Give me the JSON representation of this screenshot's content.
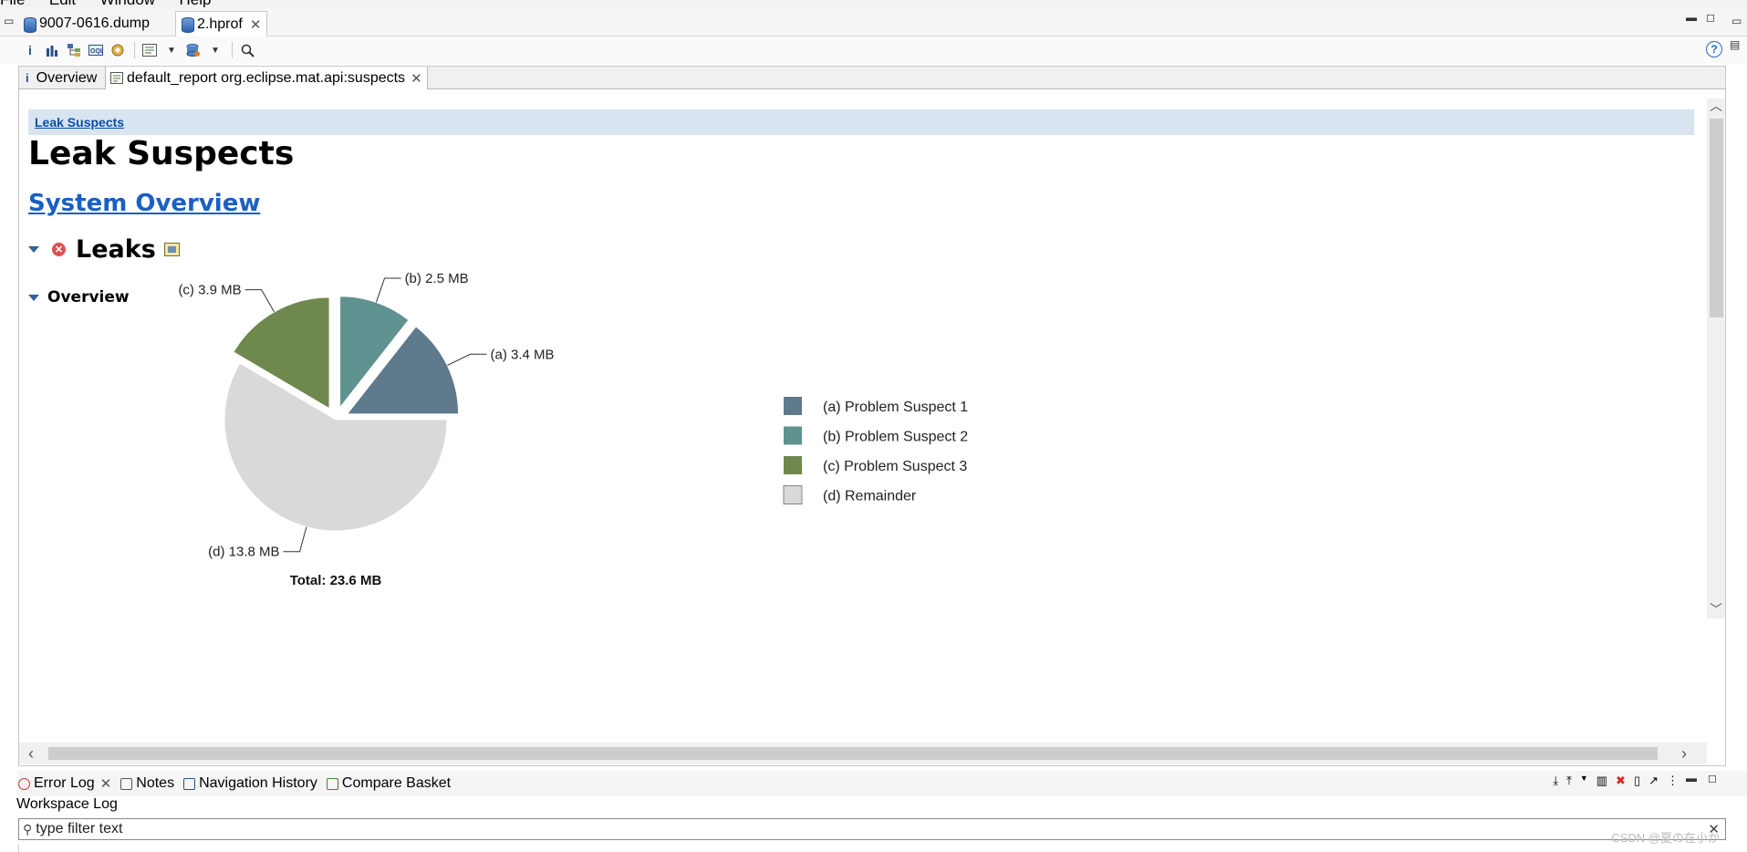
{
  "menubar": {
    "items": [
      "File",
      "Edit",
      "Window",
      "Help"
    ]
  },
  "editor_tabs": [
    {
      "label": "9007-0616.dump",
      "active": false
    },
    {
      "label": "2.hprof",
      "active": true
    }
  ],
  "toolbar": {
    "buttons": [
      "info-icon",
      "histogram-icon",
      "dominator-tree-icon",
      "oql-icon",
      "thread-overview-icon",
      "run-report-icon",
      "query-browser-icon",
      "search-icon"
    ],
    "info_glyph": "i",
    "help_glyph": "?"
  },
  "inner_tabs": [
    {
      "label": "Overview",
      "icon_glyph": "i"
    },
    {
      "label": "default_report org.eclipse.mat.api:suspects",
      "active": true
    }
  ],
  "report": {
    "breadcrumb": "Leak Suspects",
    "title": "Leak Suspects",
    "system_overview_link": "System Overview",
    "leaks_heading": "Leaks",
    "overview_heading": "Overview"
  },
  "chart_data": {
    "type": "pie",
    "unit": "MB",
    "slices": [
      {
        "key": "(a)",
        "label": "Problem Suspect 1",
        "value": 3.4,
        "value_text": "3.4 MB",
        "color": "#5f7a8c",
        "exploded": true
      },
      {
        "key": "(b)",
        "label": "Problem Suspect 2",
        "value": 2.5,
        "value_text": "2.5 MB",
        "color": "#5f9290",
        "exploded": true
      },
      {
        "key": "(c)",
        "label": "Problem Suspect 3",
        "value": 3.9,
        "value_text": "3.9 MB",
        "color": "#6e884e",
        "exploded": true
      },
      {
        "key": "(d)",
        "label": "Remainder",
        "value": 13.8,
        "value_text": "13.8 MB",
        "color": "#d9d9d9",
        "exploded": false
      }
    ],
    "total_text": "Total: 23.6 MB",
    "legend_position": "right"
  },
  "bottom": {
    "tabs": [
      "Error Log",
      "Notes",
      "Navigation History",
      "Compare Basket"
    ],
    "workspace_log": "Workspace Log",
    "filter_placeholder": "type filter text",
    "watermark": "CSDN @夏の在小か"
  },
  "colors": {
    "accent_link": "#1a5fc4",
    "breadcrumb_bg": "#d8e4ef"
  }
}
